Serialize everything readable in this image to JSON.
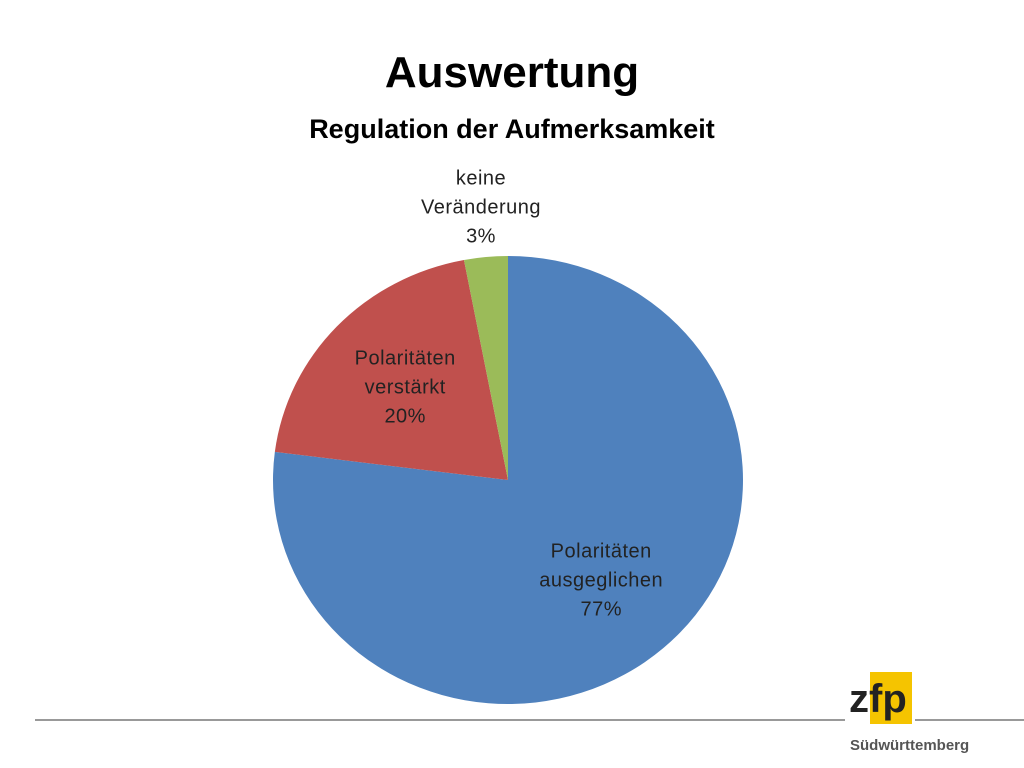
{
  "chart_data": {
    "type": "pie",
    "title": "Auswertung",
    "subtitle": "Regulation der Aufmerksamkeit",
    "categories": [
      "Polaritäten ausgeglichen",
      "Polaritäten verstärkt",
      "keine Veränderung"
    ],
    "values": [
      77,
      20,
      3
    ],
    "value_labels": [
      "77%",
      "20%",
      "3%"
    ],
    "colors": [
      "#4f81bd",
      "#c0504d",
      "#9bbb59"
    ]
  },
  "logo": {
    "text": "zfp",
    "subtitle": "Südwürttemberg"
  }
}
